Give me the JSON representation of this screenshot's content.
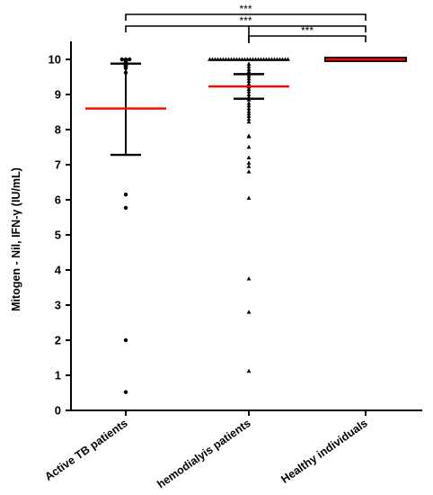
{
  "chart_data": {
    "type": "scatter",
    "title": "",
    "xlabel": "",
    "ylabel": "Mitogen - Nil, IFN-γ (IU/mL)",
    "ylim": [
      0,
      10
    ],
    "yticks": [
      "0",
      "1",
      "2",
      "3",
      "4",
      "5",
      "6",
      "7",
      "8",
      "9",
      "10"
    ],
    "categories": [
      "Active TB patients",
      "hemodialyis patients",
      "Healthy individuals"
    ],
    "groups": [
      {
        "name": "Active TB patients",
        "marker": "circle",
        "mean": 8.6,
        "sd_low": 7.28,
        "sd_high": 9.88,
        "points": [
          10,
          10,
          10,
          9.97,
          9.95,
          9.93,
          9.92,
          9.9,
          9.88,
          9.87,
          9.86,
          9.85,
          9.84,
          9.83,
          9.82,
          9.8,
          9.78,
          9.75,
          9.62,
          6.15,
          5.77,
          2.0,
          0.52
        ]
      },
      {
        "name": "hemodialyis patients",
        "marker": "triangle",
        "mean": 9.23,
        "sd_low": 8.88,
        "sd_high": 9.58,
        "points": [
          10,
          10,
          10,
          10,
          10,
          10,
          10,
          10,
          10,
          10,
          10,
          10,
          10,
          10,
          10,
          10,
          10,
          10,
          10,
          10,
          10,
          10,
          10,
          10,
          10,
          10,
          10,
          10,
          10,
          10,
          9.87,
          9.8,
          9.72,
          9.65,
          9.58,
          9.52,
          9.45,
          9.38,
          9.3,
          9.22,
          9.15,
          9.08,
          9.0,
          8.92,
          8.85,
          8.75,
          8.68,
          8.6,
          8.52,
          8.45,
          8.38,
          8.3,
          8.22,
          7.82,
          7.8,
          7.5,
          7.2,
          7.05,
          6.95,
          6.8,
          6.05,
          3.75,
          2.8,
          1.12
        ]
      },
      {
        "name": "Healthy individuals",
        "marker": "line",
        "mean": 10,
        "sd_low": 9.98,
        "sd_high": 10.02,
        "points": [
          10
        ]
      }
    ],
    "significance": [
      {
        "from": "Active TB patients",
        "to": "Healthy individuals",
        "label": "***"
      },
      {
        "from": "Active TB patients",
        "to": "Healthy individuals",
        "label": "***"
      },
      {
        "from": "hemodialyis patients",
        "to": "Healthy individuals",
        "label": "***"
      }
    ],
    "colors": {
      "mean_line": "#ff0000",
      "markers": "#000000",
      "axes": "#000000"
    },
    "grid": false
  }
}
